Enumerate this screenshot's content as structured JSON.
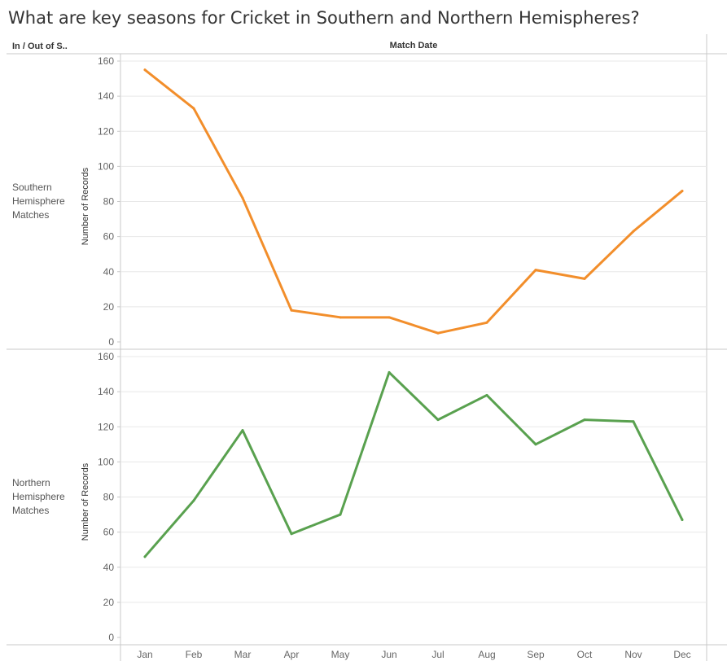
{
  "title": "What are key seasons for Cricket in Southern and Northern Hemispheres?",
  "row_header": "In / Out of S..",
  "col_header": "Match Date",
  "colors": {
    "southern": "#f28e2b",
    "northern": "#59a14f",
    "grid": "#e8e8e8",
    "rule": "#c8c8c8"
  },
  "chart_data": [
    {
      "type": "line",
      "panel": "Southern Hemisphere Matches",
      "row_label_lines": [
        "Southern",
        "Hemisphere",
        "Matches"
      ],
      "ylabel": "Number of Records",
      "ylim": [
        0,
        160
      ],
      "yticks": [
        0,
        20,
        40,
        60,
        80,
        100,
        120,
        140,
        160
      ],
      "categories": [
        "Jan",
        "Feb",
        "Mar",
        "Apr",
        "May",
        "Jun",
        "Jul",
        "Aug",
        "Sep",
        "Oct",
        "Nov",
        "Dec"
      ],
      "values": [
        155,
        133,
        82,
        18,
        14,
        14,
        5,
        11,
        41,
        36,
        63,
        86
      ],
      "color": "#f28e2b"
    },
    {
      "type": "line",
      "panel": "Northern Hemisphere Matches",
      "row_label_lines": [
        "Northern",
        "Hemisphere",
        "Matches"
      ],
      "ylabel": "Number of Records",
      "ylim": [
        0,
        160
      ],
      "yticks": [
        0,
        20,
        40,
        60,
        80,
        100,
        120,
        140,
        160
      ],
      "categories": [
        "Jan",
        "Feb",
        "Mar",
        "Apr",
        "May",
        "Jun",
        "Jul",
        "Aug",
        "Sep",
        "Oct",
        "Nov",
        "Dec"
      ],
      "values": [
        46,
        78,
        118,
        59,
        70,
        151,
        124,
        138,
        110,
        124,
        123,
        67
      ],
      "color": "#59a14f"
    }
  ]
}
